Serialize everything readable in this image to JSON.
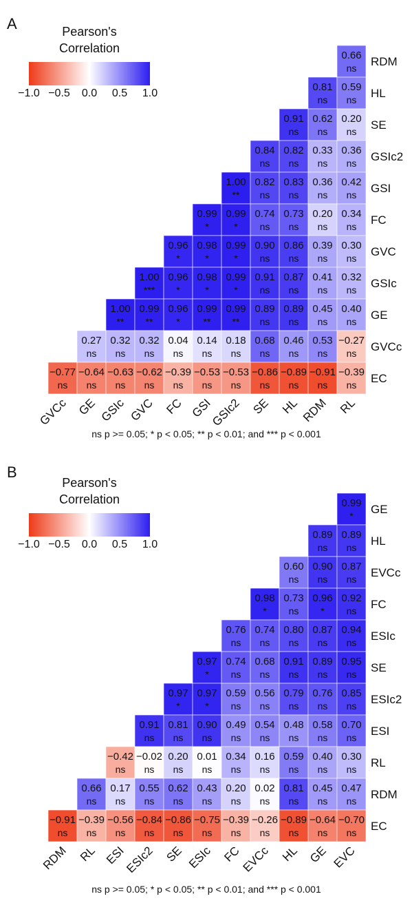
{
  "footnote_text": "ns p >= 0.05; * p < 0.05; ** p < 0.01; and *** p < 0.001",
  "legend": {
    "title_line1": "Pearson's",
    "title_line2": "Correlation",
    "ticks": [
      "−1.0",
      "−0.5",
      "0.0",
      "0.5",
      "1.0"
    ],
    "tick_values": [
      -1.0,
      -0.5,
      0.0,
      0.5,
      1.0
    ],
    "colors": {
      "low": "#EE3B19",
      "mid": "#FFFFFF",
      "high": "#2D1EF0"
    }
  },
  "chart_data": [
    {
      "type": "heatmap",
      "panel": "A",
      "title": "",
      "row_labels": [
        "RDM",
        "HL",
        "SE",
        "GSIc2",
        "GSI",
        "FC",
        "GVC",
        "GSIc",
        "GE",
        "GVCc",
        "EC"
      ],
      "col_labels": [
        "GVCc",
        "GE",
        "GSIc",
        "GVC",
        "FC",
        "GSI",
        "GSIc2",
        "SE",
        "HL",
        "RDM",
        "RL"
      ],
      "values": [
        [
          null,
          null,
          null,
          null,
          null,
          null,
          null,
          null,
          null,
          null,
          0.66
        ],
        [
          null,
          null,
          null,
          null,
          null,
          null,
          null,
          null,
          null,
          0.81,
          0.59
        ],
        [
          null,
          null,
          null,
          null,
          null,
          null,
          null,
          null,
          0.91,
          0.62,
          0.2
        ],
        [
          null,
          null,
          null,
          null,
          null,
          null,
          null,
          0.84,
          0.82,
          0.33,
          0.36
        ],
        [
          null,
          null,
          null,
          null,
          null,
          null,
          1.0,
          0.82,
          0.83,
          0.36,
          0.42
        ],
        [
          null,
          null,
          null,
          null,
          null,
          0.99,
          0.99,
          0.74,
          0.73,
          0.2,
          0.34
        ],
        [
          null,
          null,
          null,
          null,
          0.96,
          0.98,
          0.99,
          0.9,
          0.86,
          0.39,
          0.3
        ],
        [
          null,
          null,
          null,
          1.0,
          0.96,
          0.98,
          0.99,
          0.91,
          0.87,
          0.41,
          0.32
        ],
        [
          null,
          null,
          1.0,
          0.99,
          0.96,
          0.99,
          0.99,
          0.89,
          0.89,
          0.45,
          0.4
        ],
        [
          null,
          0.27,
          0.32,
          0.32,
          0.04,
          0.14,
          0.18,
          0.68,
          0.46,
          0.53,
          -0.27
        ],
        [
          -0.77,
          -0.64,
          -0.63,
          -0.62,
          -0.39,
          -0.53,
          -0.53,
          -0.86,
          -0.89,
          -0.91,
          -0.39
        ]
      ],
      "significance": [
        [
          null,
          null,
          null,
          null,
          null,
          null,
          null,
          null,
          null,
          null,
          "ns"
        ],
        [
          null,
          null,
          null,
          null,
          null,
          null,
          null,
          null,
          null,
          "ns",
          "ns"
        ],
        [
          null,
          null,
          null,
          null,
          null,
          null,
          null,
          null,
          "ns",
          "ns",
          "ns"
        ],
        [
          null,
          null,
          null,
          null,
          null,
          null,
          null,
          "ns",
          "ns",
          "ns",
          "ns"
        ],
        [
          null,
          null,
          null,
          null,
          null,
          null,
          "**",
          "ns",
          "ns",
          "ns",
          "ns"
        ],
        [
          null,
          null,
          null,
          null,
          null,
          "*",
          "*",
          "ns",
          "ns",
          "ns",
          "ns"
        ],
        [
          null,
          null,
          null,
          null,
          "*",
          "*",
          "*",
          "ns",
          "ns",
          "ns",
          "ns"
        ],
        [
          null,
          null,
          null,
          "***",
          "*",
          "*",
          "*",
          "ns",
          "ns",
          "ns",
          "ns"
        ],
        [
          null,
          null,
          "**",
          "**",
          "*",
          "**",
          "**",
          "ns",
          "ns",
          "ns",
          "ns"
        ],
        [
          null,
          "ns",
          "ns",
          "ns",
          "ns",
          "ns",
          "ns",
          "ns",
          "ns",
          "ns",
          "ns"
        ],
        [
          "ns",
          "ns",
          "ns",
          "ns",
          "ns",
          "ns",
          "ns",
          "ns",
          "ns",
          "ns",
          "ns"
        ]
      ],
      "color_range": [
        -1.0,
        1.0
      ]
    },
    {
      "type": "heatmap",
      "panel": "B",
      "title": "",
      "row_labels": [
        "GE",
        "HL",
        "EVCc",
        "FC",
        "ESIc",
        "SE",
        "ESIc2",
        "ESI",
        "RL",
        "RDM",
        "EC"
      ],
      "col_labels": [
        "RDM",
        "RL",
        "ESI",
        "ESIc2",
        "SE",
        "ESIc",
        "FC",
        "EVCc",
        "HL",
        "GE",
        "EVC"
      ],
      "values": [
        [
          null,
          null,
          null,
          null,
          null,
          null,
          null,
          null,
          null,
          null,
          0.99
        ],
        [
          null,
          null,
          null,
          null,
          null,
          null,
          null,
          null,
          null,
          0.89,
          0.89
        ],
        [
          null,
          null,
          null,
          null,
          null,
          null,
          null,
          null,
          0.6,
          0.9,
          0.87
        ],
        [
          null,
          null,
          null,
          null,
          null,
          null,
          null,
          0.98,
          0.73,
          0.96,
          0.92
        ],
        [
          null,
          null,
          null,
          null,
          null,
          null,
          0.76,
          0.74,
          0.8,
          0.87,
          0.94
        ],
        [
          null,
          null,
          null,
          null,
          null,
          0.97,
          0.74,
          0.68,
          0.91,
          0.89,
          0.95
        ],
        [
          null,
          null,
          null,
          null,
          0.97,
          0.97,
          0.59,
          0.56,
          0.79,
          0.76,
          0.85
        ],
        [
          null,
          null,
          null,
          0.91,
          0.81,
          0.9,
          0.49,
          0.54,
          0.48,
          0.58,
          0.7
        ],
        [
          null,
          null,
          -0.42,
          -0.02,
          0.2,
          0.01,
          0.34,
          0.16,
          0.59,
          0.4,
          0.3
        ],
        [
          null,
          0.66,
          0.17,
          0.55,
          0.62,
          0.43,
          0.2,
          0.02,
          0.81,
          0.45,
          0.47
        ],
        [
          -0.91,
          -0.39,
          -0.56,
          -0.84,
          -0.86,
          -0.75,
          -0.39,
          -0.26,
          -0.89,
          -0.64,
          -0.7
        ]
      ],
      "significance": [
        [
          null,
          null,
          null,
          null,
          null,
          null,
          null,
          null,
          null,
          null,
          "*"
        ],
        [
          null,
          null,
          null,
          null,
          null,
          null,
          null,
          null,
          null,
          "ns",
          "ns"
        ],
        [
          null,
          null,
          null,
          null,
          null,
          null,
          null,
          null,
          "ns",
          "ns",
          "ns"
        ],
        [
          null,
          null,
          null,
          null,
          null,
          null,
          null,
          "*",
          "ns",
          "*",
          "ns"
        ],
        [
          null,
          null,
          null,
          null,
          null,
          null,
          "ns",
          "ns",
          "ns",
          "ns",
          "ns"
        ],
        [
          null,
          null,
          null,
          null,
          null,
          "*",
          "ns",
          "ns",
          "ns",
          "ns",
          "ns"
        ],
        [
          null,
          null,
          null,
          null,
          "*",
          "*",
          "ns",
          "ns",
          "ns",
          "ns",
          "ns"
        ],
        [
          null,
          null,
          null,
          "ns",
          "ns",
          "ns",
          "ns",
          "ns",
          "ns",
          "ns",
          "ns"
        ],
        [
          null,
          null,
          "ns",
          "ns",
          "ns",
          "ns",
          "ns",
          "ns",
          "ns",
          "ns",
          "ns"
        ],
        [
          null,
          "ns",
          "ns",
          "ns",
          "ns",
          "ns",
          "ns",
          "ns",
          "ns",
          "ns",
          "ns"
        ],
        [
          "ns",
          "ns",
          "ns",
          "ns",
          "ns",
          "ns",
          "ns",
          "ns",
          "ns",
          "ns",
          "ns"
        ]
      ],
      "color_range": [
        -1.0,
        1.0
      ]
    }
  ]
}
